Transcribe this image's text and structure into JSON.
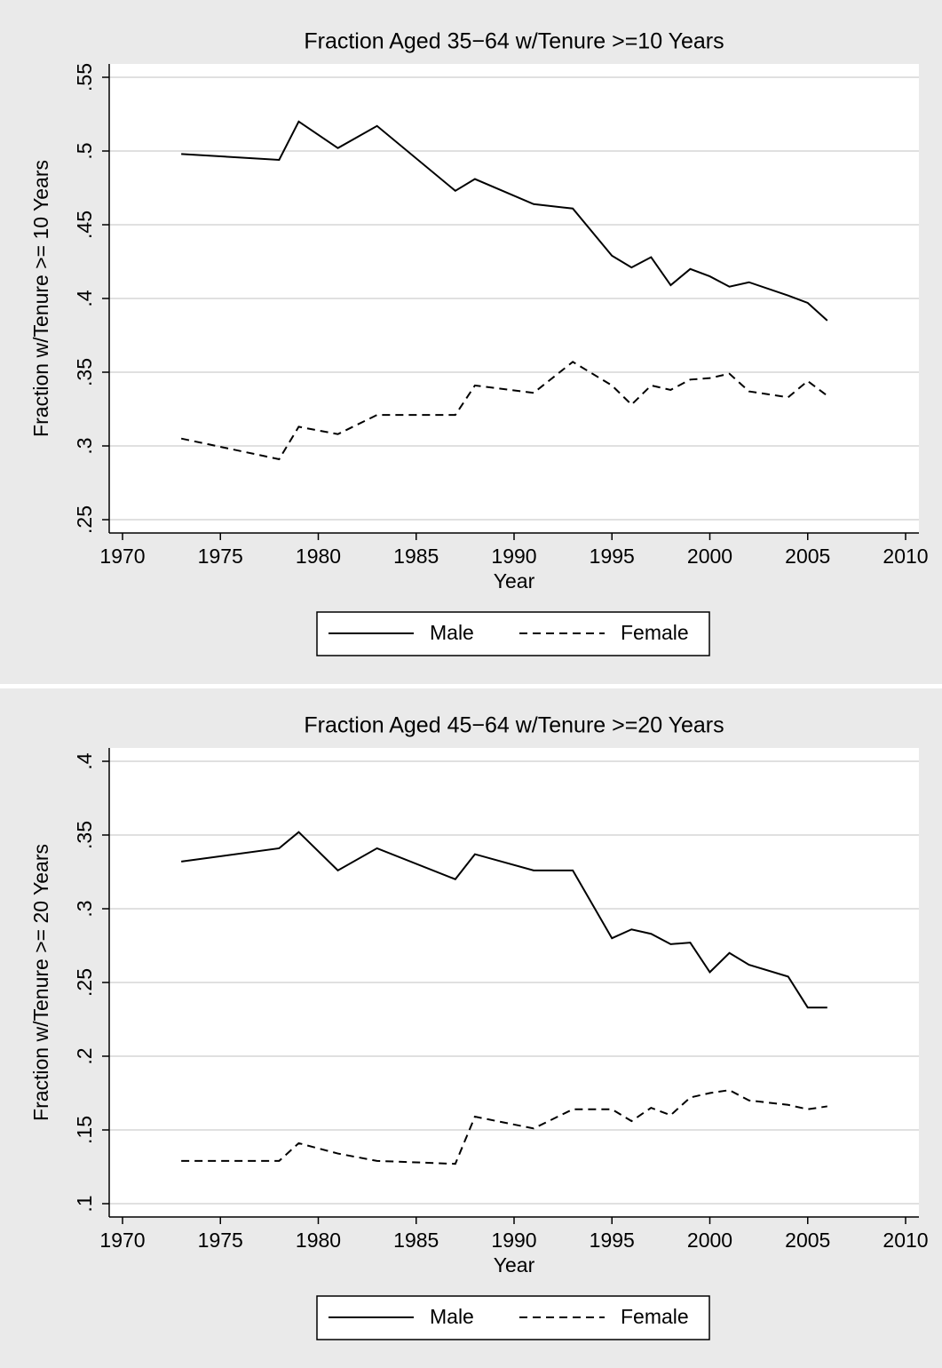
{
  "chart_data": [
    {
      "type": "line",
      "title": "Fraction Aged 35−64 w/Tenure >=10 Years",
      "xlabel": "Year",
      "ylabel": "Fraction w/Tenure >= 10 Years",
      "x": [
        1973,
        1978,
        1979,
        1981,
        1983,
        1987,
        1988,
        1991,
        1993,
        1995,
        1996,
        1997,
        1998,
        1999,
        2000,
        2001,
        2002,
        2004,
        2005,
        2006
      ],
      "series": [
        {
          "name": "Male",
          "color": "#000000",
          "style": "solid",
          "values": [
            0.498,
            0.494,
            0.52,
            0.502,
            0.517,
            0.473,
            0.481,
            0.464,
            0.461,
            0.429,
            0.421,
            0.428,
            0.409,
            0.42,
            0.415,
            0.408,
            0.411,
            0.402,
            0.397,
            0.385
          ]
        },
        {
          "name": "Female",
          "color": "#000000",
          "style": "dashed",
          "values": [
            0.305,
            0.291,
            0.313,
            0.308,
            0.321,
            0.321,
            0.341,
            0.336,
            0.357,
            0.341,
            0.328,
            0.341,
            0.338,
            0.345,
            0.346,
            0.349,
            0.337,
            0.333,
            0.344,
            0.334
          ]
        }
      ],
      "xlim": [
        1970,
        2010
      ],
      "xticks": [
        1970,
        1975,
        1980,
        1985,
        1990,
        1995,
        2000,
        2005,
        2010
      ],
      "ylim": [
        0.25,
        0.55
      ],
      "yticks": [
        {
          "value": 0.25,
          "label": ".25"
        },
        {
          "value": 0.3,
          "label": ".3"
        },
        {
          "value": 0.35,
          "label": ".35"
        },
        {
          "value": 0.4,
          "label": ".4"
        },
        {
          "value": 0.45,
          "label": ".45"
        },
        {
          "value": 0.5,
          "label": ".5"
        },
        {
          "value": 0.55,
          "label": ".55"
        }
      ],
      "grid": true,
      "legend": "bottom"
    },
    {
      "type": "line",
      "title": "Fraction Aged 45−64 w/Tenure >=20 Years",
      "xlabel": "Year",
      "ylabel": "Fraction w/Tenure >= 20 Years",
      "x": [
        1973,
        1978,
        1979,
        1981,
        1983,
        1987,
        1988,
        1991,
        1993,
        1995,
        1996,
        1997,
        1998,
        1999,
        2000,
        2001,
        2002,
        2004,
        2005,
        2006
      ],
      "series": [
        {
          "name": "Male",
          "color": "#000000",
          "style": "solid",
          "values": [
            0.332,
            0.341,
            0.352,
            0.326,
            0.341,
            0.32,
            0.337,
            0.326,
            0.326,
            0.28,
            0.286,
            0.283,
            0.276,
            0.277,
            0.257,
            0.27,
            0.262,
            0.254,
            0.233,
            0.233
          ]
        },
        {
          "name": "Female",
          "color": "#000000",
          "style": "dashed",
          "values": [
            0.129,
            0.129,
            0.141,
            0.134,
            0.129,
            0.127,
            0.159,
            0.151,
            0.164,
            0.164,
            0.156,
            0.165,
            0.16,
            0.172,
            0.175,
            0.177,
            0.17,
            0.167,
            0.164,
            0.166
          ]
        }
      ],
      "xlim": [
        1970,
        2010
      ],
      "xticks": [
        1970,
        1975,
        1980,
        1985,
        1990,
        1995,
        2000,
        2005,
        2010
      ],
      "ylim": [
        0.1,
        0.4
      ],
      "yticks": [
        {
          "value": 0.1,
          "label": ".1"
        },
        {
          "value": 0.15,
          "label": ".15"
        },
        {
          "value": 0.2,
          "label": ".2"
        },
        {
          "value": 0.25,
          "label": ".25"
        },
        {
          "value": 0.3,
          "label": ".3"
        },
        {
          "value": 0.35,
          "label": ".35"
        },
        {
          "value": 0.4,
          "label": ".4"
        }
      ],
      "grid": true,
      "legend": "bottom"
    }
  ]
}
